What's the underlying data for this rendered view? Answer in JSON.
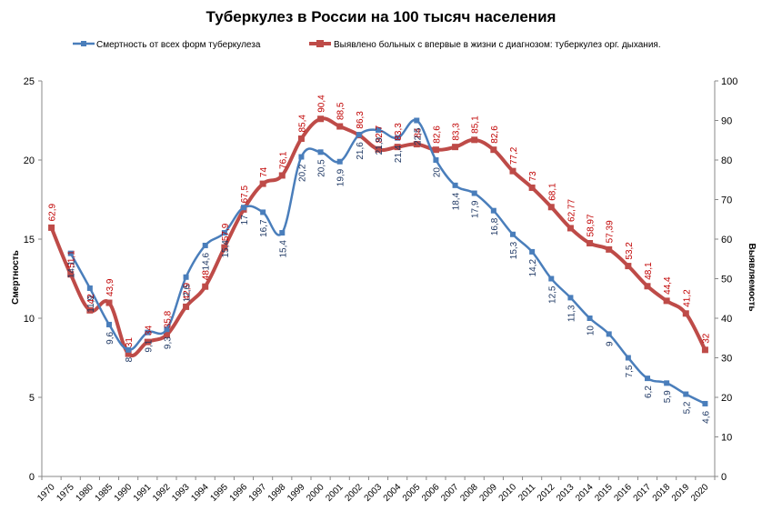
{
  "chart_data": {
    "type": "line",
    "title": "Туберкулез в России на 100 тысяч населения",
    "categories": [
      "1970",
      "1975",
      "1980",
      "1985",
      "1990",
      "1991",
      "1992",
      "1993",
      "1994",
      "1995",
      "1996",
      "1997",
      "1998",
      "1999",
      "2000",
      "2001",
      "2002",
      "2003",
      "2004",
      "2005",
      "2006",
      "2007",
      "2008",
      "2009",
      "2010",
      "2011",
      "2012",
      "2013",
      "2014",
      "2015",
      "2016",
      "2017",
      "2018",
      "2019",
      "2020"
    ],
    "y_left": {
      "label": "Смертность",
      "ylim": [
        0,
        25
      ],
      "ticks": [
        "0",
        "5",
        "10",
        "15",
        "20",
        "25"
      ]
    },
    "y_right": {
      "label": "Выявляемость",
      "ylim": [
        0,
        100
      ],
      "ticks": [
        "0",
        "10",
        "20",
        "30",
        "40",
        "50",
        "60",
        "70",
        "80",
        "90",
        "100"
      ]
    },
    "grid": false,
    "legend_position": "top",
    "series": [
      {
        "name": "Смертность от всех форм туберкулеза",
        "axis": "left",
        "color": "#4a7ebb",
        "marker": "square",
        "values": [
          null,
          14.1,
          11.9,
          9.6,
          8,
          9.1,
          9.3,
          12.6,
          14.6,
          15.4,
          17,
          16.7,
          15.4,
          20.2,
          20.5,
          19.9,
          21.6,
          21.9,
          21.4,
          22.5,
          20,
          18.4,
          17.9,
          16.8,
          15.3,
          14.2,
          12.5,
          11.3,
          10,
          9,
          7.5,
          6.2,
          5.9,
          5.2,
          4.6
        ],
        "labels": [
          "",
          "14,1",
          "11,9",
          "9,6",
          "8",
          "9,1",
          "9,3",
          "12,6",
          "14,6",
          "15,4",
          "17",
          "16,7",
          "15,4",
          "20,2",
          "20,5",
          "19,9",
          "21,6",
          "21,9",
          "21,4",
          "22,5",
          "20",
          "18,4",
          "17,9",
          "16,8",
          "15,3",
          "14,2",
          "12,5",
          "11,3",
          "10",
          "9",
          "7,5",
          "6,2",
          "5,9",
          "5,2",
          "4,6"
        ]
      },
      {
        "name": "Выявлено больных с впервые в жизни с диагнозом: туберкулез орг. дыхания.",
        "axis": "right",
        "color": "#be4b48",
        "marker": "square",
        "values": [
          62.9,
          51.1,
          42,
          43.9,
          31,
          34,
          35.8,
          42.9,
          48,
          57.9,
          67.5,
          74,
          76.1,
          85.4,
          90.4,
          88.5,
          86.3,
          82.7,
          83.3,
          84,
          82.6,
          83.3,
          85.1,
          82.6,
          77.2,
          73,
          68.1,
          62.77,
          58.97,
          57.39,
          53.2,
          48.1,
          44.4,
          41.2,
          32
        ],
        "labels": [
          "62,9",
          "51,1",
          "42",
          "43,9",
          "31",
          "34",
          "35,8",
          "42,9",
          "48",
          "57,9",
          "67,5",
          "74",
          "76,1",
          "85,4",
          "90,4",
          "88,5",
          "86,3",
          "82,7",
          "83,3",
          "84",
          "82,6",
          "83,3",
          "85,1",
          "82,6",
          "77,2",
          "73",
          "68,1",
          "62,77",
          "58,97",
          "57,39",
          "53,2",
          "48,1",
          "44,4",
          "41,2",
          "32"
        ]
      }
    ]
  }
}
